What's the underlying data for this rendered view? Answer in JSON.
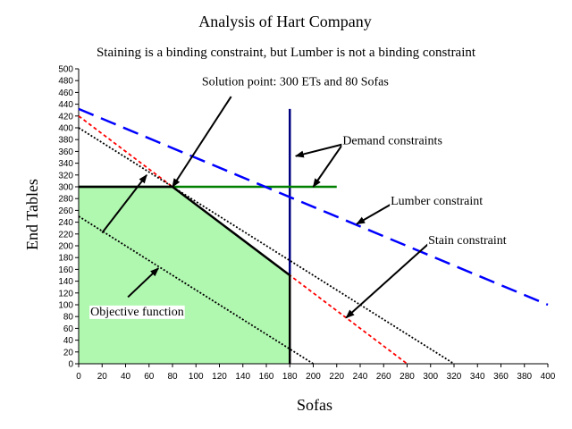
{
  "chart_data": {
    "type": "line",
    "title": "Analysis of Hart Company",
    "subtitle": "Staining is a binding constraint, but Lumber is not a binding constraint",
    "xlabel": "Sofas",
    "ylabel": "End Tables",
    "xlim": [
      0,
      400
    ],
    "ylim": [
      0,
      500
    ],
    "xticks": [
      0,
      20,
      40,
      60,
      80,
      100,
      120,
      140,
      160,
      180,
      200,
      220,
      240,
      260,
      280,
      300,
      320,
      340,
      360,
      380,
      400
    ],
    "yticks": [
      0,
      20,
      40,
      60,
      80,
      100,
      120,
      140,
      160,
      180,
      200,
      220,
      240,
      260,
      280,
      300,
      320,
      340,
      360,
      380,
      400,
      420,
      440,
      460,
      480,
      500
    ],
    "grid": false,
    "feasible_region": {
      "color": "#b0f7b0",
      "points": [
        [
          0,
          0
        ],
        [
          0,
          300
        ],
        [
          80,
          300
        ],
        [
          180,
          150
        ],
        [
          180,
          0
        ]
      ]
    },
    "series": [
      {
        "key": "demand_sofas",
        "color": "#000080",
        "dash": "solid",
        "x": [
          180,
          180
        ],
        "y": [
          0,
          432
        ]
      },
      {
        "key": "demand_et",
        "color": "#008000",
        "dash": "solid",
        "x": [
          0,
          220
        ],
        "y": [
          300,
          300
        ]
      },
      {
        "key": "lumber",
        "color": "#0000ff",
        "dash": "long",
        "x": [
          0,
          400
        ],
        "y": [
          432,
          100
        ]
      },
      {
        "key": "stain",
        "color": "#ff0000",
        "dash": "short",
        "x": [
          0,
          280
        ],
        "y": [
          420,
          0
        ]
      },
      {
        "key": "objective_1",
        "color": "#000000",
        "dash": "dot",
        "x": [
          0,
          200
        ],
        "y": [
          250,
          0
        ]
      },
      {
        "key": "objective_2",
        "color": "#000000",
        "dash": "dot",
        "x": [
          0,
          320
        ],
        "y": [
          400,
          0
        ]
      },
      {
        "key": "region_boundary",
        "color": "#000000",
        "dash": "solid",
        "x": [
          0,
          80,
          180,
          180
        ],
        "y": [
          300,
          300,
          150,
          0
        ]
      }
    ],
    "annotations": [
      {
        "text": "Solution point: 300 ETs and 80 Sofas",
        "x": 105,
        "y": 472
      },
      {
        "text": "Demand constraints",
        "x": 225,
        "y": 372
      },
      {
        "text": "Lumber constraint",
        "x": 266,
        "y": 270
      },
      {
        "text": "Stain constraint",
        "x": 298,
        "y": 203
      },
      {
        "text": "Objective function",
        "x": 10,
        "y": 82
      }
    ],
    "arrows": [
      {
        "from": [
          130,
          453
        ],
        "to": [
          80,
          300
        ]
      },
      {
        "from": [
          225,
          372
        ],
        "to": [
          185,
          352
        ]
      },
      {
        "from": [
          225,
          372
        ],
        "to": [
          200,
          300
        ]
      },
      {
        "from": [
          266,
          270
        ],
        "to": [
          237,
          237
        ]
      },
      {
        "from": [
          298,
          203
        ],
        "to": [
          228,
          78
        ]
      },
      {
        "from": [
          20,
          222
        ],
        "to": [
          58,
          320
        ]
      },
      {
        "from": [
          42,
          113
        ],
        "to": [
          68,
          162
        ]
      }
    ]
  }
}
